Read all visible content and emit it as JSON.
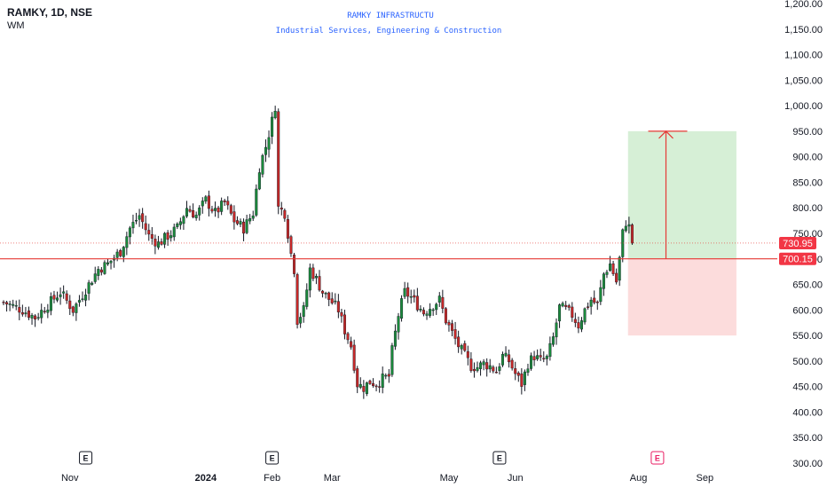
{
  "header": {
    "ticker": "RAMKY, 1D, NSE",
    "indicator": "WM",
    "company": "RAMKY INFRASTRUCTU",
    "sector": "Industrial Services, Engineering & Construction"
  },
  "colors": {
    "up": "#26a69a",
    "down": "#ef5350",
    "candle_body_up": "#1b8a3c",
    "candle_body_down": "#c62828",
    "wick": "#131722",
    "level_line": "#e53935",
    "profit_zone": "#d6efd6",
    "loss_zone": "#fcdcdc",
    "current_badge": "#f23645",
    "level_badge": "#f23645",
    "earnings_past": "#131722",
    "earnings_future": "#e91e63"
  },
  "chart_data": {
    "type": "candlestick",
    "y_axis": {
      "min": 300,
      "max": 1200,
      "ticks": [
        "1,200.00",
        "1,150.00",
        "1,100.00",
        "1,050.00",
        "1,000.00",
        "950.00",
        "900.00",
        "850.00",
        "800.00",
        "750.00",
        "700.00",
        "650.00",
        "600.00",
        "550.00",
        "500.00",
        "450.00",
        "400.00",
        "350.00",
        "300.00"
      ]
    },
    "x_axis": {
      "labels": [
        {
          "text": "Nov",
          "bold": false,
          "idx": 21
        },
        {
          "text": "2024",
          "bold": true,
          "idx": 64
        },
        {
          "text": "Feb",
          "bold": false,
          "idx": 85
        },
        {
          "text": "Mar",
          "bold": false,
          "idx": 104
        },
        {
          "text": "May",
          "bold": false,
          "idx": 141
        },
        {
          "text": "Jun",
          "bold": false,
          "idx": 162
        },
        {
          "text": "Aug",
          "bold": false,
          "idx": 201
        },
        {
          "text": "Sep",
          "bold": false,
          "idx": 222
        }
      ]
    },
    "current_price": "730.95",
    "current_value": 730.95,
    "level_price": "700.15",
    "level_value": 700.15,
    "position": {
      "entry": 700.15,
      "target": 950,
      "stop": 550,
      "start_idx": 196,
      "end_idx": 232
    },
    "earnings": [
      {
        "label": "E",
        "idx": 26,
        "future": false
      },
      {
        "label": "E",
        "idx": 85,
        "future": false
      },
      {
        "label": "E",
        "idx": 157,
        "future": false
      },
      {
        "label": "E",
        "idx": 207,
        "future": true
      }
    ],
    "path": [
      [
        0,
        615
      ],
      [
        6,
        600
      ],
      [
        10,
        585
      ],
      [
        14,
        610
      ],
      [
        18,
        635
      ],
      [
        22,
        600
      ],
      [
        26,
        640
      ],
      [
        30,
        680
      ],
      [
        33,
        690
      ],
      [
        37,
        715
      ],
      [
        40,
        760
      ],
      [
        43,
        785
      ],
      [
        46,
        745
      ],
      [
        49,
        730
      ],
      [
        52,
        745
      ],
      [
        55,
        760
      ],
      [
        58,
        800
      ],
      [
        61,
        785
      ],
      [
        64,
        815
      ],
      [
        67,
        790
      ],
      [
        70,
        810
      ],
      [
        73,
        775
      ],
      [
        76,
        760
      ],
      [
        79,
        790
      ],
      [
        81,
        880
      ],
      [
        83,
        920
      ],
      [
        85,
        970
      ],
      [
        86,
        1000
      ],
      [
        87,
        800
      ],
      [
        89,
        790
      ],
      [
        91,
        710
      ],
      [
        92,
        680
      ],
      [
        93,
        580
      ],
      [
        95,
        600
      ],
      [
        97,
        680
      ],
      [
        99,
        660
      ],
      [
        101,
        635
      ],
      [
        104,
        615
      ],
      [
        106,
        600
      ],
      [
        108,
        560
      ],
      [
        110,
        530
      ],
      [
        112,
        455
      ],
      [
        114,
        448
      ],
      [
        116,
        460
      ],
      [
        118,
        455
      ],
      [
        120,
        465
      ],
      [
        122,
        470
      ],
      [
        123,
        520
      ],
      [
        125,
        590
      ],
      [
        127,
        635
      ],
      [
        129,
        625
      ],
      [
        131,
        610
      ],
      [
        133,
        595
      ],
      [
        135,
        605
      ],
      [
        138,
        620
      ],
      [
        140,
        580
      ],
      [
        142,
        555
      ],
      [
        144,
        530
      ],
      [
        146,
        510
      ],
      [
        148,
        490
      ],
      [
        150,
        488
      ],
      [
        152,
        495
      ],
      [
        154,
        490
      ],
      [
        156,
        480
      ],
      [
        158,
        510
      ],
      [
        160,
        500
      ],
      [
        162,
        475
      ],
      [
        164,
        455
      ],
      [
        166,
        495
      ],
      [
        168,
        510
      ],
      [
        170,
        500
      ],
      [
        172,
        505
      ],
      [
        174,
        545
      ],
      [
        176,
        605
      ],
      [
        178,
        600
      ],
      [
        180,
        590
      ],
      [
        182,
        570
      ],
      [
        184,
        600
      ],
      [
        186,
        620
      ],
      [
        188,
        610
      ],
      [
        190,
        670
      ],
      [
        192,
        690
      ],
      [
        194,
        655
      ],
      [
        195,
        700
      ],
      [
        196,
        750
      ],
      [
        197,
        772
      ],
      [
        198,
        762
      ],
      [
        199,
        730.95
      ]
    ]
  }
}
